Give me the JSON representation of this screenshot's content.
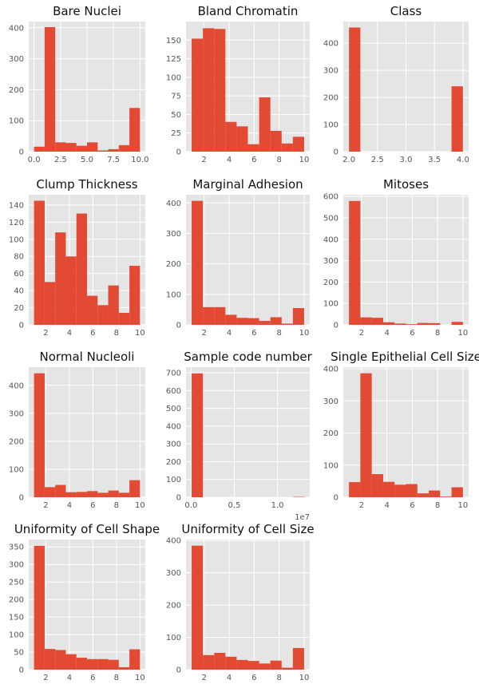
{
  "figure": {
    "background": "#ffffff",
    "panel_color": "#e5e5e5",
    "bar_color": "#e24a33",
    "grid": true
  },
  "chart_data": [
    {
      "type": "bar",
      "title": "Bare Nuclei",
      "bin_edges": [
        0,
        1,
        2,
        3,
        4,
        5,
        6,
        7,
        8,
        9,
        10
      ],
      "values": [
        16,
        402,
        30,
        28,
        19,
        30,
        4,
        8,
        21,
        141
      ],
      "xlim": [
        -0.5,
        10.5
      ],
      "ylim": [
        0,
        420
      ],
      "xticks": [
        0,
        2.5,
        5,
        7.5,
        10
      ],
      "xtick_labels": [
        "0.0",
        "2.5",
        "5.0",
        "7.5",
        "10.0"
      ],
      "yticks": [
        0,
        100,
        200,
        300,
        400
      ],
      "ytick_labels": [
        "0",
        "100",
        "200",
        "300",
        "400"
      ]
    },
    {
      "type": "bar",
      "title": "Bland Chromatin",
      "bin_edges": [
        1,
        1.9,
        2.8,
        3.7,
        4.6,
        5.5,
        6.4,
        7.3,
        8.2,
        9.1,
        10
      ],
      "values": [
        152,
        166,
        165,
        40,
        34,
        10,
        73,
        28,
        11,
        20
      ],
      "xlim": [
        0.55,
        10.45
      ],
      "ylim": [
        0,
        175
      ],
      "xticks": [
        2,
        4,
        6,
        8,
        10
      ],
      "xtick_labels": [
        "2",
        "4",
        "6",
        "8",
        "10"
      ],
      "yticks": [
        0,
        25,
        50,
        75,
        100,
        125,
        150
      ],
      "ytick_labels": [
        "0",
        "25",
        "50",
        "75",
        "100",
        "125",
        "150"
      ]
    },
    {
      "type": "bar",
      "title": "Class",
      "bin_edges": [
        2,
        2.2,
        2.4,
        2.6,
        2.8,
        3.0,
        3.2,
        3.4,
        3.6,
        3.8,
        4.0
      ],
      "values": [
        458,
        0,
        0,
        0,
        0,
        0,
        0,
        0,
        0,
        241
      ],
      "xlim": [
        1.9,
        4.1
      ],
      "ylim": [
        0,
        480
      ],
      "xticks": [
        2.0,
        2.5,
        3.0,
        3.5,
        4.0
      ],
      "xtick_labels": [
        "2.0",
        "2.5",
        "3.0",
        "3.5",
        "4.0"
      ],
      "yticks": [
        0,
        100,
        200,
        300,
        400
      ],
      "ytick_labels": [
        "0",
        "100",
        "200",
        "300",
        "400"
      ]
    },
    {
      "type": "bar",
      "title": "Clump Thickness",
      "bin_edges": [
        1,
        1.9,
        2.8,
        3.7,
        4.6,
        5.5,
        6.4,
        7.3,
        8.2,
        9.1,
        10
      ],
      "values": [
        145,
        50,
        108,
        80,
        130,
        34,
        23,
        46,
        14,
        69
      ],
      "xlim": [
        0.55,
        10.45
      ],
      "ylim": [
        0,
        152
      ],
      "xticks": [
        2,
        4,
        6,
        8,
        10
      ],
      "xtick_labels": [
        "2",
        "4",
        "6",
        "8",
        "10"
      ],
      "yticks": [
        0,
        20,
        40,
        60,
        80,
        100,
        120,
        140
      ],
      "ytick_labels": [
        "0",
        "20",
        "40",
        "60",
        "80",
        "100",
        "120",
        "140"
      ]
    },
    {
      "type": "bar",
      "title": "Marginal Adhesion",
      "bin_edges": [
        1,
        1.9,
        2.8,
        3.7,
        4.6,
        5.5,
        6.4,
        7.3,
        8.2,
        9.1,
        10
      ],
      "values": [
        407,
        58,
        58,
        33,
        23,
        22,
        13,
        25,
        4,
        55
      ],
      "xlim": [
        0.55,
        10.45
      ],
      "ylim": [
        0,
        427
      ],
      "xticks": [
        2,
        4,
        6,
        8,
        10
      ],
      "xtick_labels": [
        "2",
        "4",
        "6",
        "8",
        "10"
      ],
      "yticks": [
        0,
        100,
        200,
        300,
        400
      ],
      "ytick_labels": [
        "0",
        "100",
        "200",
        "300",
        "400"
      ]
    },
    {
      "type": "bar",
      "title": "Mitoses",
      "bin_edges": [
        1,
        1.9,
        2.8,
        3.7,
        4.6,
        5.5,
        6.4,
        7.3,
        8.2,
        9.1,
        10
      ],
      "values": [
        579,
        35,
        33,
        12,
        6,
        3,
        9,
        8,
        0,
        14
      ],
      "xlim": [
        0.55,
        10.45
      ],
      "ylim": [
        0,
        608
      ],
      "xticks": [
        2,
        4,
        6,
        8,
        10
      ],
      "xtick_labels": [
        "2",
        "4",
        "6",
        "8",
        "10"
      ],
      "yticks": [
        0,
        100,
        200,
        300,
        400,
        500,
        600
      ],
      "ytick_labels": [
        "0",
        "100",
        "200",
        "300",
        "400",
        "500",
        "600"
      ]
    },
    {
      "type": "bar",
      "title": "Normal Nucleoli",
      "bin_edges": [
        1,
        1.9,
        2.8,
        3.7,
        4.6,
        5.5,
        6.4,
        7.3,
        8.2,
        9.1,
        10
      ],
      "values": [
        443,
        36,
        44,
        18,
        19,
        22,
        16,
        24,
        16,
        61
      ],
      "xlim": [
        0.55,
        10.45
      ],
      "ylim": [
        0,
        465
      ],
      "xticks": [
        2,
        4,
        6,
        8,
        10
      ],
      "xtick_labels": [
        "2",
        "4",
        "6",
        "8",
        "10"
      ],
      "yticks": [
        0,
        100,
        200,
        300,
        400
      ],
      "ytick_labels": [
        "0",
        "100",
        "200",
        "300",
        "400"
      ]
    },
    {
      "type": "bar",
      "title": "Sample code number",
      "bin_edges": [
        61634,
        1363770.6,
        2665907.2,
        3968043.8,
        5270180.4,
        6572317,
        7874453.6,
        9176590.2,
        10478726.8,
        11780863.4,
        13083000
      ],
      "values": [
        697,
        0,
        0,
        0,
        0,
        0,
        0,
        0,
        0,
        2
      ],
      "xlim": [
        -589473,
        13734107
      ],
      "ylim": [
        0,
        732
      ],
      "xticks": [
        0,
        5000000,
        10000000
      ],
      "xtick_labels": [
        "0.0",
        "0.5",
        "1.0"
      ],
      "offset_text": "1e7",
      "yticks": [
        0,
        100,
        200,
        300,
        400,
        500,
        600,
        700
      ],
      "ytick_labels": [
        "0",
        "100",
        "200",
        "300",
        "400",
        "500",
        "600",
        "700"
      ]
    },
    {
      "type": "bar",
      "title": "Single Epithelial Cell Size",
      "bin_edges": [
        1,
        1.9,
        2.8,
        3.7,
        4.6,
        5.5,
        6.4,
        7.3,
        8.2,
        9.1,
        10
      ],
      "values": [
        47,
        386,
        72,
        48,
        39,
        41,
        12,
        21,
        2,
        31
      ],
      "xlim": [
        0.55,
        10.45
      ],
      "ylim": [
        0,
        405
      ],
      "xticks": [
        2,
        4,
        6,
        8,
        10
      ],
      "xtick_labels": [
        "2",
        "4",
        "6",
        "8",
        "10"
      ],
      "yticks": [
        0,
        100,
        200,
        300,
        400
      ],
      "ytick_labels": [
        "0",
        "100",
        "200",
        "300",
        "400"
      ]
    },
    {
      "type": "bar",
      "title": "Uniformity of Cell Shape",
      "bin_edges": [
        1,
        1.9,
        2.8,
        3.7,
        4.6,
        5.5,
        6.4,
        7.3,
        8.2,
        9.1,
        10
      ],
      "values": [
        353,
        59,
        56,
        44,
        34,
        30,
        30,
        28,
        7,
        58
      ],
      "xlim": [
        0.55,
        10.45
      ],
      "ylim": [
        0,
        371
      ],
      "xticks": [
        2,
        4,
        6,
        8,
        10
      ],
      "xtick_labels": [
        "2",
        "4",
        "6",
        "8",
        "10"
      ],
      "yticks": [
        0,
        50,
        100,
        150,
        200,
        250,
        300,
        350
      ],
      "ytick_labels": [
        "0",
        "50",
        "100",
        "150",
        "200",
        "250",
        "300",
        "350"
      ]
    },
    {
      "type": "bar",
      "title": "Uniformity of Cell Size",
      "bin_edges": [
        1,
        1.9,
        2.8,
        3.7,
        4.6,
        5.5,
        6.4,
        7.3,
        8.2,
        9.1,
        10
      ],
      "values": [
        384,
        45,
        52,
        40,
        30,
        27,
        19,
        28,
        6,
        67
      ],
      "xlim": [
        0.55,
        10.45
      ],
      "ylim": [
        0,
        403
      ],
      "xticks": [
        2,
        4,
        6,
        8,
        10
      ],
      "xtick_labels": [
        "2",
        "4",
        "6",
        "8",
        "10"
      ],
      "yticks": [
        0,
        100,
        200,
        300,
        400
      ],
      "ytick_labels": [
        "0",
        "100",
        "200",
        "300",
        "400"
      ]
    }
  ]
}
